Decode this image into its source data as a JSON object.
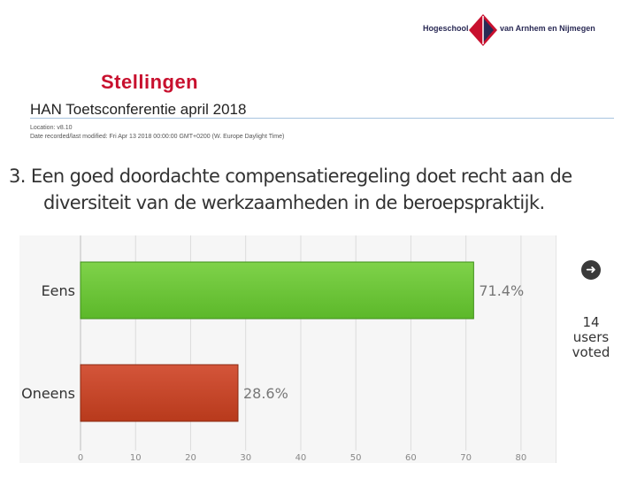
{
  "header": {
    "logo_left": "Hogeschool",
    "logo_right": "van Arnhem en Nijmegen"
  },
  "slide": {
    "title": "Stellingen"
  },
  "poll": {
    "name": "HAN Toetsconferentie april 2018",
    "location": "Location: v8.10",
    "date_line": "Date recorded/last modified: Fri Apr 13 2018 00:00:00 GMT+0200 (W. Europe Daylight Time)",
    "question_line1": "3. Een goed doordachte compensatieregeling doet recht aan de",
    "question_line2": "diversiteit van de werkzaamheden in de beroepspraktijk.",
    "votes": {
      "count": "14",
      "line2": "users",
      "line3": "voted"
    }
  },
  "colors": {
    "brand_red": "#c8102e",
    "bar_green": "#5cb82a",
    "bar_red": "#b83a1c"
  },
  "icons": {
    "next": "arrow-right-circle-icon",
    "logo": "han-logo-icon"
  },
  "chart_data": {
    "type": "bar",
    "orientation": "horizontal",
    "categories": [
      "Eens",
      "Oneens"
    ],
    "values": [
      71.4,
      28.6
    ],
    "value_labels": [
      "71.4%",
      "28.6%"
    ],
    "colors": [
      "#5cb82a",
      "#b83a1c"
    ],
    "xlim": [
      0,
      85
    ],
    "xticks": [
      0,
      10,
      20,
      30,
      40,
      50,
      60,
      70,
      80
    ],
    "grid": true,
    "title": "",
    "xlabel": "",
    "ylabel": ""
  }
}
